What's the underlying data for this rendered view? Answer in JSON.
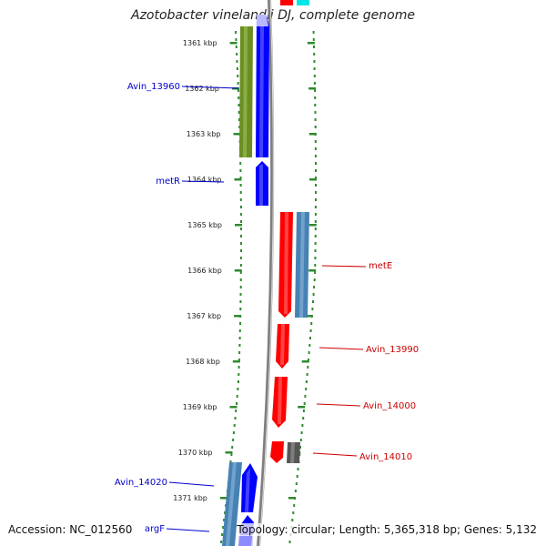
{
  "title": "Azotobacter vinelandii DJ, complete genome",
  "footer": {
    "accession": "Accession: NC_012560",
    "summary": "Topology: circular; Length: 5,365,318 bp; Genes: 5,132"
  },
  "colors": {
    "ruler_dots": "#2e8b2e",
    "tick_label": "#222222",
    "backbone": "#7f7f7f",
    "forward_label": "#0000cc",
    "reverse_label": "#cc0000",
    "gene_blue": "#0000ff",
    "gene_red": "#ff0000",
    "gene_olive": "#6b8e23",
    "gene_steel": "#4682b4",
    "gene_gray": "#555555",
    "gene_cyan": "#00e5e5"
  },
  "ticks": [
    "1361 kbp",
    "1362 kbp",
    "1363 kbp",
    "1364 kbp",
    "1365 kbp",
    "1366 kbp",
    "1367 kbp",
    "1368 kbp",
    "1369 kbp",
    "1370 kbp",
    "1371 kbp"
  ],
  "genes": [
    {
      "name": "Avin_13960",
      "strand": "+",
      "label_side": "left"
    },
    {
      "name": "metR",
      "strand": "+",
      "label_side": "left"
    },
    {
      "name": "metE",
      "strand": "-",
      "label_side": "right"
    },
    {
      "name": "Avin_13990",
      "strand": "-",
      "label_side": "right"
    },
    {
      "name": "Avin_14000",
      "strand": "-",
      "label_side": "right"
    },
    {
      "name": "Avin_14010",
      "strand": "-",
      "label_side": "right"
    },
    {
      "name": "Avin_14020",
      "strand": "+",
      "label_side": "left"
    },
    {
      "name": "argF",
      "strand": "+",
      "label_side": "left"
    }
  ]
}
